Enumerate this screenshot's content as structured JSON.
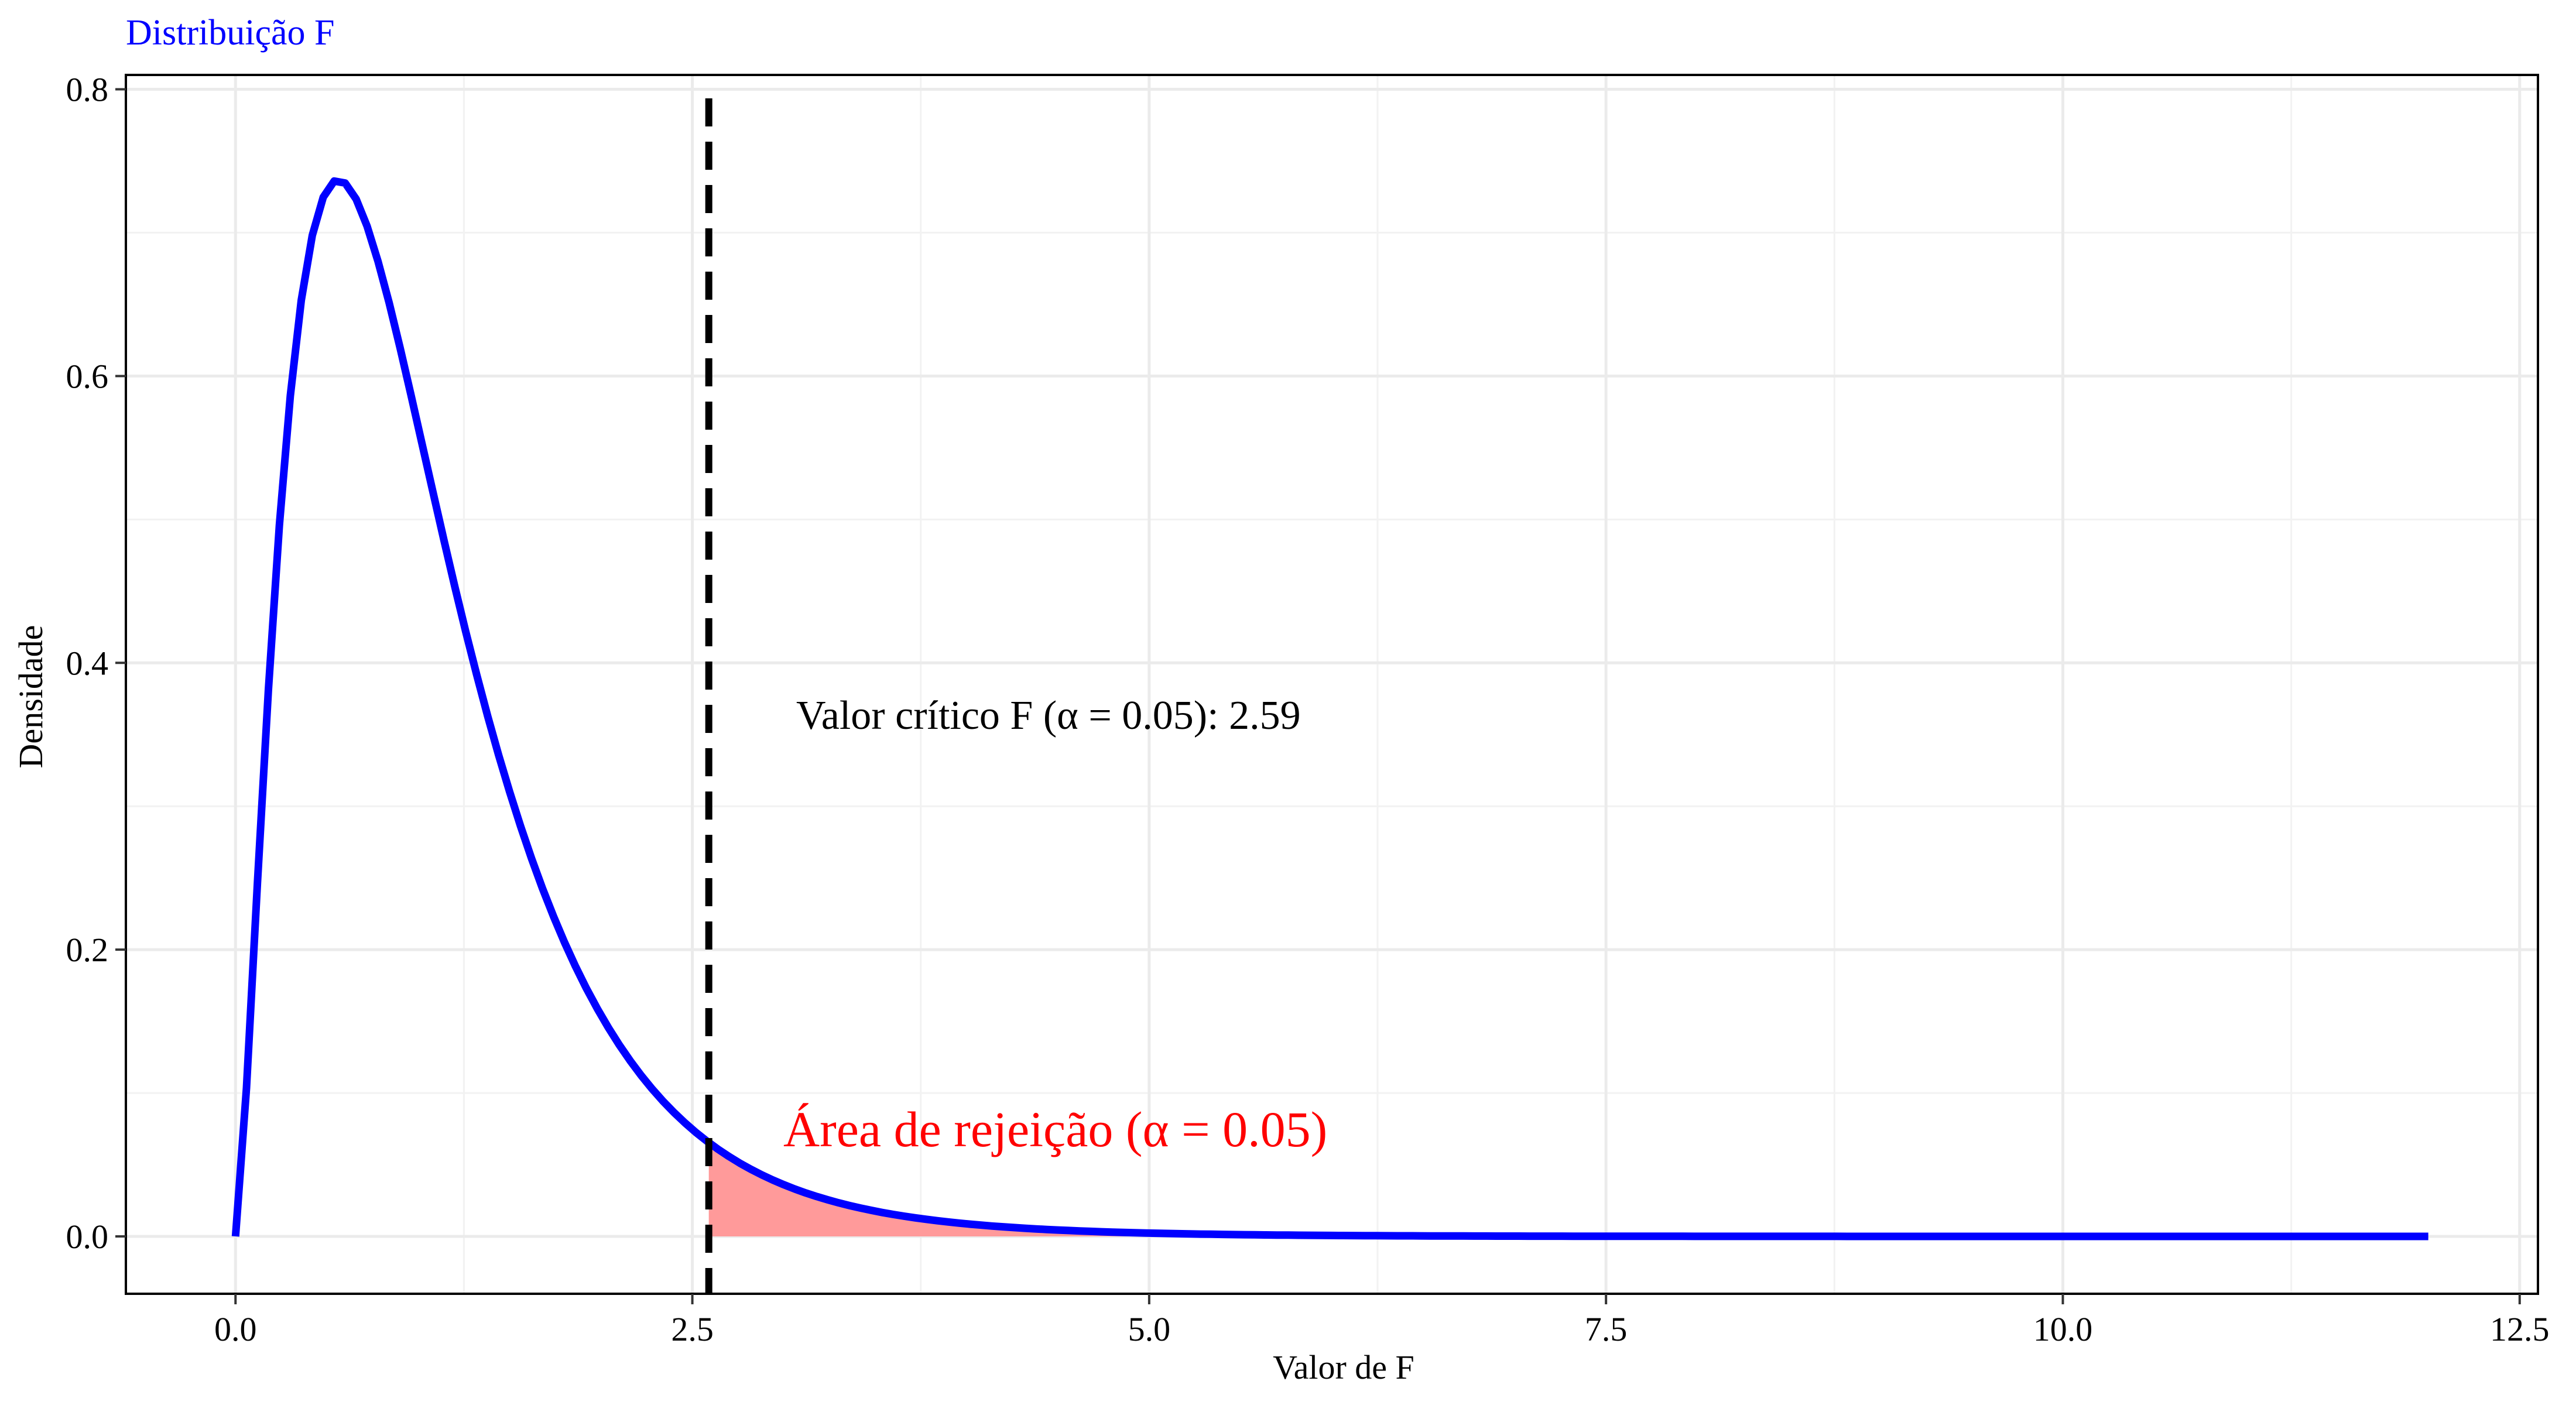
{
  "chart_data": {
    "type": "area",
    "title": "Distribuição F",
    "xlabel": "Valor de F",
    "ylabel": "Densidade",
    "xlim": [
      -0.6,
      12.6
    ],
    "ylim": [
      -0.04,
      0.81
    ],
    "x_ticks": [
      0.0,
      2.5,
      5.0,
      7.5,
      10.0,
      12.5
    ],
    "x_tick_labels": [
      "0.0",
      "2.5",
      "5.0",
      "7.5",
      "10.0",
      "12.5"
    ],
    "y_ticks": [
      0.0,
      0.2,
      0.4,
      0.6,
      0.8
    ],
    "y_tick_labels": [
      "0.0",
      "0.2",
      "0.4",
      "0.6",
      "0.8"
    ],
    "grid": true,
    "distribution": {
      "df1": 5,
      "df2": 30
    },
    "x_range": [
      0,
      12
    ],
    "critical_value": 2.59,
    "critical_label": "Valor crítico F (α = 0.05): 2.59",
    "rejection_label": "Área de rejeição (α = 0.05)",
    "colors": {
      "curve": "#0000ff",
      "title": "#0000ff",
      "rejection_fill": "#ff9a9a",
      "rejection_text": "#ff0000",
      "critical_line": "#000000",
      "grid": "#ebebeb"
    }
  }
}
